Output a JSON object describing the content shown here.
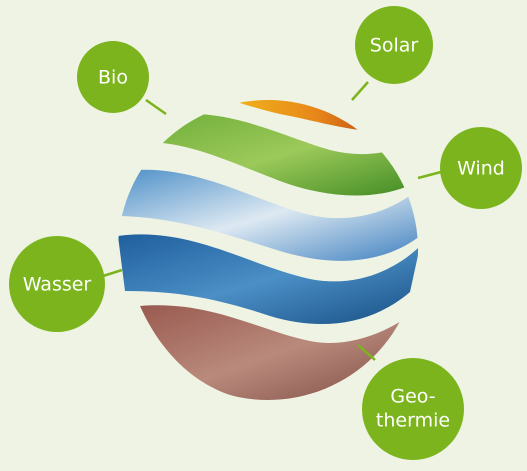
{
  "nodes": [
    {
      "label": "Bio"
    },
    {
      "label": "Solar"
    },
    {
      "label": "Wind"
    },
    {
      "label": "Wasser"
    },
    {
      "lines": [
        "Geo-",
        "thermie"
      ]
    }
  ]
}
